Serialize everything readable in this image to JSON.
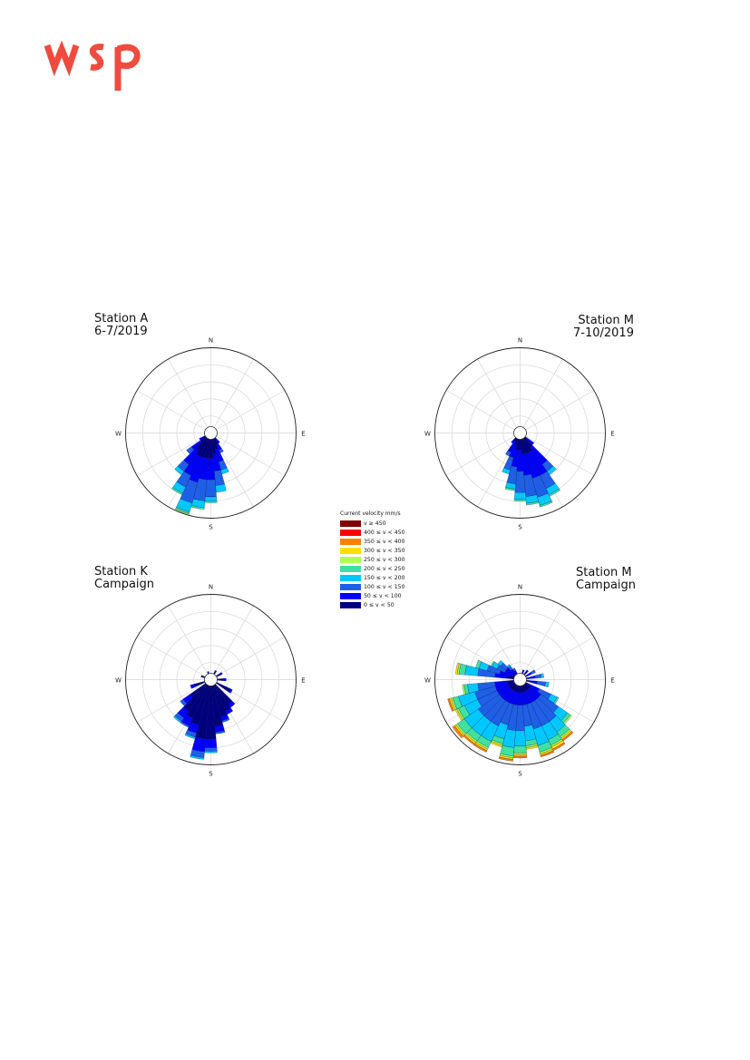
{
  "colors": {
    "logo": "#ef4b3e",
    "bins": [
      "#00007f",
      "#0000ff",
      "#1f5fe6",
      "#00c8ff",
      "#40e0a0",
      "#b0ff50",
      "#ffe000",
      "#ff7f00",
      "#ff0000",
      "#7f0000"
    ]
  },
  "legend": {
    "title": "Current velocity mm/s",
    "items": [
      "v ≥ 450",
      "400 ≤ v < 450",
      "350 ≤ v < 400",
      "300 ≤ v < 350",
      "250 ≤ v < 300",
      "200 ≤ v < 250",
      "150 ≤ v < 200",
      "100 ≤ v < 150",
      "50 ≤ v < 100",
      "0 ≤ v < 50"
    ]
  },
  "chart_data": [
    {
      "type": "polar-bar",
      "title_lines": [
        "Station A",
        "6-7/2019"
      ],
      "directions": [
        "N",
        "E",
        "S",
        "W"
      ],
      "sector_deg": 10,
      "bins": [
        "0 ≤ v < 50",
        "50 ≤ v < 100",
        "100 ≤ v < 150",
        "150 ≤ v < 200",
        "200 ≤ v < 250",
        "250 ≤ v < 300"
      ],
      "sectors": [
        {
          "dir": 150,
          "cum": [
            0.15,
            0.22,
            0.26
          ]
        },
        {
          "dir": 160,
          "cum": [
            0.2,
            0.35,
            0.45,
            0.5
          ]
        },
        {
          "dir": 170,
          "cum": [
            0.25,
            0.45,
            0.62,
            0.7
          ]
        },
        {
          "dir": 180,
          "cum": [
            0.3,
            0.55,
            0.75,
            0.8,
            0.82
          ]
        },
        {
          "dir": 190,
          "cum": [
            0.3,
            0.55,
            0.8,
            0.88,
            0.9
          ]
        },
        {
          "dir": 200,
          "cum": [
            0.3,
            0.6,
            0.85,
            0.96,
            0.98,
            0.99
          ]
        },
        {
          "dir": 210,
          "cum": [
            0.3,
            0.55,
            0.7,
            0.78,
            0.8
          ]
        },
        {
          "dir": 220,
          "cum": [
            0.25,
            0.45,
            0.55,
            0.6
          ]
        },
        {
          "dir": 230,
          "cum": [
            0.15,
            0.28,
            0.35
          ]
        },
        {
          "dir": 240,
          "cum": [
            0.1,
            0.15
          ]
        },
        {
          "dir": 140,
          "cum": [
            0.1,
            0.15
          ]
        },
        {
          "dir": 130,
          "cum": [
            0.07
          ]
        }
      ]
    },
    {
      "type": "polar-bar",
      "title_lines": [
        "Station M",
        "7-10/2019"
      ],
      "directions": [
        "N",
        "E",
        "S",
        "W"
      ],
      "sector_deg": 10,
      "bins": [
        "0 ≤ v < 50",
        "50 ≤ v < 100",
        "100 ≤ v < 150",
        "150 ≤ v < 200",
        "200 ≤ v < 250",
        "250 ≤ v < 300"
      ],
      "sectors": [
        {
          "dir": 140,
          "cum": [
            0.2,
            0.45,
            0.55,
            0.6
          ]
        },
        {
          "dir": 150,
          "cum": [
            0.25,
            0.55,
            0.72,
            0.8,
            0.82
          ]
        },
        {
          "dir": 160,
          "cum": [
            0.25,
            0.55,
            0.78,
            0.88,
            0.9
          ]
        },
        {
          "dir": 170,
          "cum": [
            0.25,
            0.5,
            0.75,
            0.83,
            0.85
          ]
        },
        {
          "dir": 180,
          "cum": [
            0.2,
            0.45,
            0.7,
            0.78,
            0.8
          ]
        },
        {
          "dir": 190,
          "cum": [
            0.2,
            0.4,
            0.6,
            0.66,
            0.68
          ]
        },
        {
          "dir": 200,
          "cum": [
            0.15,
            0.3,
            0.45,
            0.5
          ]
        },
        {
          "dir": 210,
          "cum": [
            0.12,
            0.25,
            0.3
          ]
        },
        {
          "dir": 220,
          "cum": [
            0.1,
            0.15
          ]
        },
        {
          "dir": 130,
          "cum": [
            0.1,
            0.2
          ]
        },
        {
          "dir": 60,
          "cum": [
            0.06
          ]
        },
        {
          "dir": 20,
          "cum": [
            0.06
          ]
        },
        {
          "dir": 0,
          "cum": [
            0.06
          ]
        },
        {
          "dir": 340,
          "cum": [
            0.05
          ]
        }
      ]
    },
    {
      "type": "polar-bar",
      "title_lines": [
        "Station K",
        "Campaign"
      ],
      "directions": [
        "N",
        "E",
        "S",
        "W"
      ],
      "sector_deg": 10,
      "bins": [
        "0 ≤ v < 50",
        "50 ≤ v < 100",
        "100 ≤ v < 150",
        "150 ≤ v < 200",
        "200 ≤ v < 250",
        "250 ≤ v < 300"
      ],
      "sectors": [
        {
          "dir": 30,
          "cum": [
            0.1,
            0.12
          ]
        },
        {
          "dir": 60,
          "cum": [
            0.12,
            0.15
          ]
        },
        {
          "dir": 90,
          "cum": [
            0.15,
            0.18
          ]
        },
        {
          "dir": 120,
          "cum": [
            0.25,
            0.28
          ]
        },
        {
          "dir": 140,
          "cum": [
            0.35,
            0.4
          ]
        },
        {
          "dir": 150,
          "cum": [
            0.4,
            0.45
          ]
        },
        {
          "dir": 160,
          "cum": [
            0.45,
            0.5,
            0.52
          ]
        },
        {
          "dir": 170,
          "cum": [
            0.55,
            0.62,
            0.64
          ]
        },
        {
          "dir": 180,
          "cum": [
            0.7,
            0.8,
            0.84,
            0.86
          ]
        },
        {
          "dir": 190,
          "cum": [
            0.7,
            0.85,
            0.92,
            0.94
          ]
        },
        {
          "dir": 200,
          "cum": [
            0.55,
            0.65,
            0.7,
            0.72
          ]
        },
        {
          "dir": 210,
          "cum": [
            0.5,
            0.6,
            0.62
          ]
        },
        {
          "dir": 220,
          "cum": [
            0.45,
            0.55,
            0.6,
            0.62
          ]
        },
        {
          "dir": 230,
          "cum": [
            0.3,
            0.4,
            0.44
          ]
        },
        {
          "dir": 250,
          "cum": [
            0.2,
            0.25
          ]
        },
        {
          "dir": 290,
          "cum": [
            0.12
          ]
        },
        {
          "dir": 340,
          "cum": [
            0.1
          ]
        }
      ]
    },
    {
      "type": "polar-bar",
      "title_lines": [
        "Station M",
        "Campaign"
      ],
      "directions": [
        "N",
        "E",
        "S",
        "W"
      ],
      "sector_deg": 10,
      "bins": [
        "0 ≤ v < 50",
        "50 ≤ v < 100",
        "100 ≤ v < 150",
        "150 ≤ v < 200",
        "200 ≤ v < 250",
        "250 ≤ v < 300",
        "300 ≤ v < 350",
        "350 ≤ v < 400",
        "400 ≤ v < 450"
      ],
      "sectors": [
        {
          "dir": 60,
          "cum": [
            0.1,
            0.15,
            0.2
          ]
        },
        {
          "dir": 80,
          "cum": [
            0.1,
            0.18,
            0.25,
            0.28
          ]
        },
        {
          "dir": 100,
          "cum": [
            0.1,
            0.2,
            0.3,
            0.34
          ]
        },
        {
          "dir": 120,
          "cum": [
            0.12,
            0.25,
            0.4,
            0.48,
            0.5
          ]
        },
        {
          "dir": 130,
          "cum": [
            0.15,
            0.3,
            0.55,
            0.68,
            0.72,
            0.74
          ]
        },
        {
          "dir": 140,
          "cum": [
            0.15,
            0.3,
            0.6,
            0.75,
            0.82,
            0.84,
            0.86,
            0.88
          ]
        },
        {
          "dir": 150,
          "cum": [
            0.15,
            0.3,
            0.6,
            0.78,
            0.85,
            0.87,
            0.9,
            0.92
          ]
        },
        {
          "dir": 160,
          "cum": [
            0.15,
            0.3,
            0.6,
            0.8,
            0.88,
            0.9,
            0.92,
            0.94
          ]
        },
        {
          "dir": 170,
          "cum": [
            0.15,
            0.3,
            0.55,
            0.72,
            0.78,
            0.8,
            0.82
          ]
        },
        {
          "dir": 180,
          "cum": [
            0.15,
            0.3,
            0.6,
            0.78,
            0.86,
            0.88,
            0.9,
            0.92
          ]
        },
        {
          "dir": 190,
          "cum": [
            0.15,
            0.3,
            0.6,
            0.8,
            0.9,
            0.92,
            0.94,
            0.96
          ]
        },
        {
          "dir": 200,
          "cum": [
            0.15,
            0.3,
            0.55,
            0.72,
            0.78,
            0.8,
            0.82
          ]
        },
        {
          "dir": 210,
          "cum": [
            0.15,
            0.3,
            0.6,
            0.8,
            0.88,
            0.9,
            0.92,
            0.94
          ]
        },
        {
          "dir": 220,
          "cum": [
            0.15,
            0.3,
            0.6,
            0.8,
            0.88,
            0.9,
            0.92,
            0.94
          ]
        },
        {
          "dir": 230,
          "cum": [
            0.15,
            0.3,
            0.6,
            0.8,
            0.9,
            0.92,
            0.94,
            0.97
          ]
        },
        {
          "dir": 240,
          "cum": [
            0.15,
            0.3,
            0.55,
            0.72,
            0.8,
            0.82,
            0.84
          ]
        },
        {
          "dir": 250,
          "cum": [
            0.15,
            0.3,
            0.55,
            0.75,
            0.82,
            0.84,
            0.86,
            0.88
          ]
        },
        {
          "dir": 260,
          "cum": [
            0.15,
            0.3,
            0.5,
            0.62,
            0.66,
            0.68
          ]
        },
        {
          "dir": 280,
          "cum": [
            0.15,
            0.3,
            0.5,
            0.65,
            0.72,
            0.74,
            0.76
          ]
        },
        {
          "dir": 290,
          "cum": [
            0.12,
            0.25,
            0.4,
            0.5,
            0.54
          ]
        },
        {
          "dir": 300,
          "cum": [
            0.1,
            0.2,
            0.3,
            0.36,
            0.38
          ]
        },
        {
          "dir": 310,
          "cum": [
            0.1,
            0.2,
            0.28,
            0.32
          ]
        },
        {
          "dir": 320,
          "cum": [
            0.08,
            0.15,
            0.2,
            0.22
          ]
        },
        {
          "dir": 330,
          "cum": [
            0.08,
            0.12,
            0.15
          ]
        },
        {
          "dir": 20,
          "cum": [
            0.08,
            0.12
          ]
        },
        {
          "dir": 40,
          "cum": [
            0.1,
            0.14
          ]
        }
      ]
    }
  ]
}
